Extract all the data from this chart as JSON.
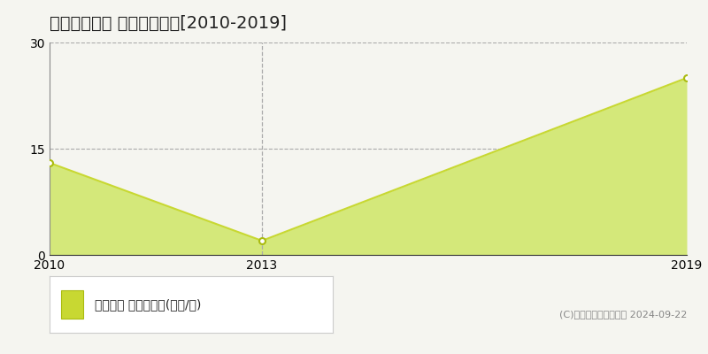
{
  "title": "三郷市小谷堀 土地価格推移[2010-2019]",
  "years": [
    2010,
    2013,
    2019
  ],
  "values": [
    13,
    2,
    25
  ],
  "ylim": [
    0,
    30
  ],
  "yticks": [
    0,
    15,
    30
  ],
  "xticks": [
    2010,
    2013,
    2019
  ],
  "line_color": "#c8d832",
  "fill_color": "#d4e87a",
  "fill_alpha": 1.0,
  "marker_color": "#ffffff",
  "marker_edge_color": "#aabb10",
  "grid_color": "#aaaaaa",
  "vline_color": "#aaaaaa",
  "background_color": "#f5f5f0",
  "legend_label": "土地価格 平均坪単価(万円/坪)",
  "legend_color": "#c8d832",
  "copyright_text": "(C)土地価格ドットコム 2024-09-22",
  "title_fontsize": 14,
  "tick_fontsize": 10,
  "legend_fontsize": 10
}
